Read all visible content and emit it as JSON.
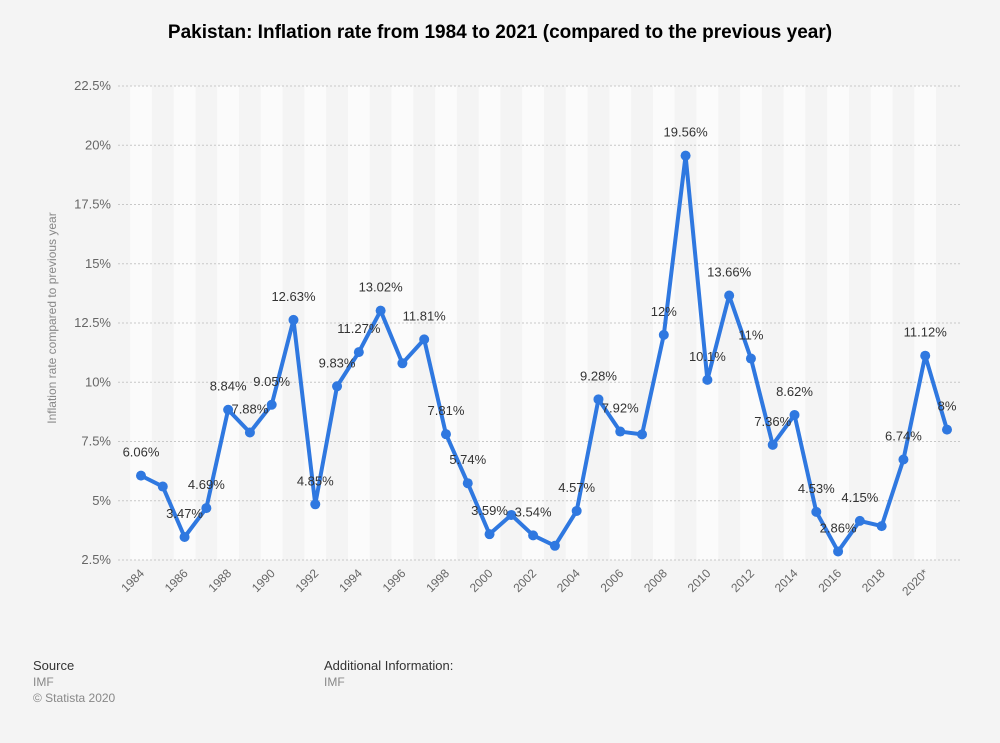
{
  "chart_data": {
    "type": "line",
    "title": "Pakistan: Inflation rate from 1984 to 2021 (compared to the previous year)",
    "xlabel": "",
    "ylabel": "Inflation rate compared to previous year",
    "ylim": [
      2.5,
      22.5
    ],
    "yticks": [
      "2.5%",
      "5%",
      "7.5%",
      "10%",
      "12.5%",
      "15%",
      "17.5%",
      "20%",
      "22.5%"
    ],
    "ytick_values": [
      2.5,
      5,
      7.5,
      10,
      12.5,
      15,
      17.5,
      20,
      22.5
    ],
    "x": [
      1984,
      1985,
      1986,
      1987,
      1988,
      1989,
      1990,
      1991,
      1992,
      1993,
      1994,
      1995,
      1996,
      1997,
      1998,
      1999,
      2000,
      2001,
      2002,
      2003,
      2004,
      2005,
      2006,
      2007,
      2008,
      2009,
      2010,
      2011,
      2012,
      2013,
      2014,
      2015,
      2016,
      2017,
      2018,
      2019,
      2020,
      2021
    ],
    "xtick_labels": [
      "1984",
      "1986",
      "1988",
      "1990",
      "1992",
      "1994",
      "1996",
      "1998",
      "2000",
      "2002",
      "2004",
      "2006",
      "2008",
      "2010",
      "2012",
      "2014",
      "2016",
      "2018",
      "2020*"
    ],
    "xtick_years": [
      1984,
      1986,
      1988,
      1990,
      1992,
      1994,
      1996,
      1998,
      2000,
      2002,
      2004,
      2006,
      2008,
      2010,
      2012,
      2014,
      2016,
      2018,
      2020
    ],
    "series": [
      {
        "name": "Inflation rate",
        "color": "#2f78e0",
        "values": [
          6.06,
          5.6,
          3.47,
          4.69,
          8.84,
          7.88,
          9.05,
          12.63,
          4.85,
          9.83,
          11.27,
          13.02,
          10.8,
          11.81,
          7.81,
          5.74,
          3.59,
          4.4,
          3.54,
          3.1,
          4.57,
          9.28,
          7.92,
          7.8,
          12,
          19.56,
          10.1,
          13.66,
          11,
          7.36,
          8.62,
          4.53,
          2.86,
          4.15,
          3.93,
          6.74,
          11.12,
          8
        ],
        "labels": [
          "6.06%",
          "",
          "3.47%",
          "4.69%",
          "8.84%",
          "7.88%",
          "9.05%",
          "12.63%",
          "4.85%",
          "9.83%",
          "11.27%",
          "13.02%",
          "",
          "11.81%",
          "7.81%",
          "5.74%",
          "3.59%",
          "",
          "3.54%",
          "",
          "4.57%",
          "9.28%",
          "7.92%",
          "",
          "12%",
          "19.56%",
          "10.1%",
          "13.66%",
          "11%",
          "7.36%",
          "8.62%",
          "4.53%",
          "2.86%",
          "4.15%",
          "",
          "6.74%",
          "11.12%",
          "8%"
        ]
      }
    ],
    "grid": true
  },
  "footer": {
    "source_heading": "Source",
    "source_value": "IMF",
    "copyright": "© Statista 2020",
    "additional_heading": "Additional Information:",
    "additional_value": "IMF"
  }
}
